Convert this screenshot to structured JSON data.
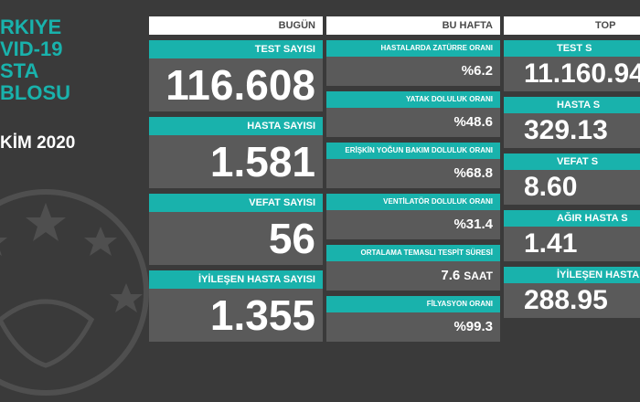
{
  "title_lines": [
    "RKIYE",
    "VID-19",
    "STA",
    "BLOSU"
  ],
  "date": "KİM 2020",
  "headers": {
    "bugun": "BUGÜN",
    "bu_hafta": "BU HAFTA",
    "toplam": "TOP"
  },
  "bugun": [
    {
      "label": "TEST SAYISI",
      "value": "116.608"
    },
    {
      "label": "HASTA SAYISI",
      "value": "1.581"
    },
    {
      "label": "VEFAT SAYISI",
      "value": "56"
    },
    {
      "label": "İYİLEŞEN HASTA SAYISI",
      "value": "1.355"
    }
  ],
  "bu_hafta": [
    {
      "label": "HASTALARDA ZATÜRRE ORANI",
      "value": "%6.2",
      "unit": ""
    },
    {
      "label": "YATAK DOLULUK ORANI",
      "value": "%48.6",
      "unit": ""
    },
    {
      "label": "ERİŞKİN YOĞUN BAKIM DOLULUK ORANI",
      "value": "%68.8",
      "unit": ""
    },
    {
      "label": "VENTİLATÖR DOLULUK ORANI",
      "value": "%31.4",
      "unit": ""
    },
    {
      "label": "ORTALAMA TEMASLI TESPİT SÜRESİ",
      "value": "7.6",
      "unit": "SAAT"
    },
    {
      "label": "FİLYASYON ORANI",
      "value": "%99.3",
      "unit": ""
    }
  ],
  "toplam": [
    {
      "label": "TEST S",
      "value": "11.160.94"
    },
    {
      "label": "HASTA S",
      "value": "329.13"
    },
    {
      "label": "VEFAT S",
      "value": "8.60"
    },
    {
      "label": "AĞIR HASTA S",
      "value": "1.41"
    },
    {
      "label": "İYİLEŞEN HASTA S",
      "value": "288.95"
    }
  ],
  "colors": {
    "teal": "#19b2ac",
    "dark_bg": "#3a3a3a",
    "value_bg": "#5a5a5a"
  }
}
